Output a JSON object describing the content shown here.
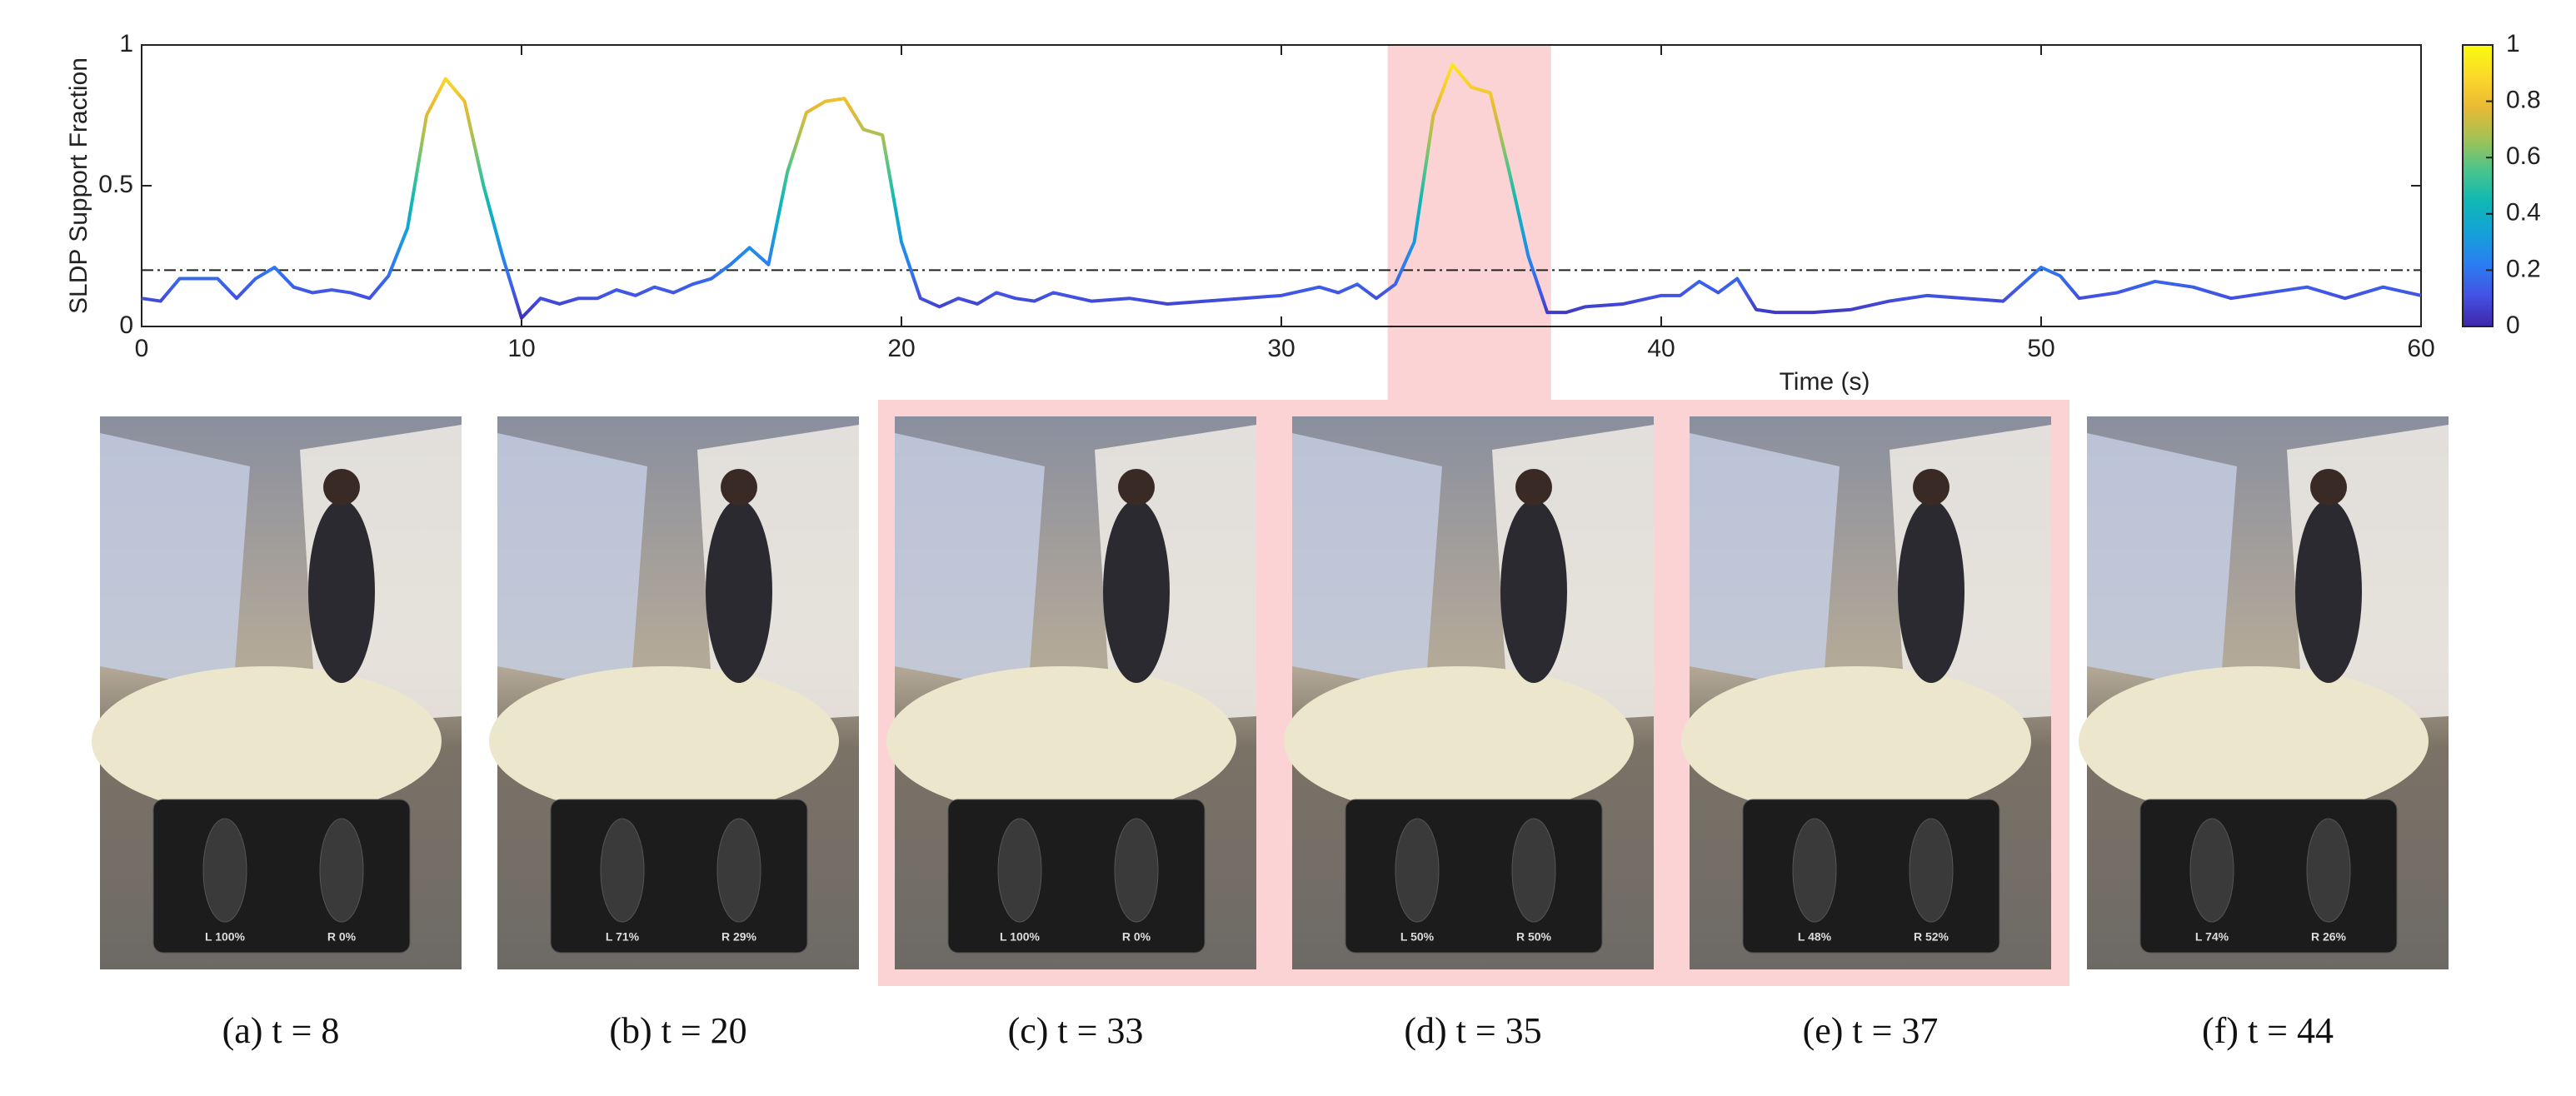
{
  "chart_data": {
    "type": "line",
    "xlabel": "Time (s)",
    "ylabel": "SLDP Support Fraction",
    "x": [
      0,
      0.5,
      1,
      1.5,
      2,
      2.5,
      3,
      3.5,
      4,
      4.5,
      5,
      5.5,
      6,
      6.5,
      7,
      7.5,
      8,
      8.5,
      9,
      9.5,
      10,
      10.5,
      11,
      11.5,
      12,
      12.5,
      13,
      13.5,
      14,
      14.5,
      15,
      15.5,
      16,
      16.5,
      17,
      17.5,
      18,
      18.5,
      19,
      19.5,
      20,
      20.5,
      21,
      21.5,
      22,
      22.5,
      23,
      23.5,
      24,
      25,
      26,
      27,
      28,
      29,
      30,
      31,
      31.5,
      32,
      32.5,
      33,
      33.5,
      34,
      34.5,
      35,
      35.5,
      36,
      36.5,
      37,
      37.5,
      38,
      39,
      40,
      40.5,
      41,
      41.5,
      42,
      42.5,
      43,
      44,
      45,
      46,
      47,
      48,
      49,
      49.5,
      50,
      50.5,
      51,
      52,
      53,
      54,
      55,
      56,
      57,
      58,
      59,
      60
    ],
    "values": [
      0.1,
      0.09,
      0.17,
      0.17,
      0.17,
      0.1,
      0.17,
      0.21,
      0.14,
      0.12,
      0.13,
      0.12,
      0.1,
      0.18,
      0.35,
      0.75,
      0.88,
      0.8,
      0.5,
      0.25,
      0.03,
      0.1,
      0.08,
      0.1,
      0.1,
      0.13,
      0.11,
      0.14,
      0.12,
      0.15,
      0.17,
      0.22,
      0.28,
      0.22,
      0.55,
      0.76,
      0.8,
      0.81,
      0.7,
      0.68,
      0.3,
      0.1,
      0.07,
      0.1,
      0.08,
      0.12,
      0.1,
      0.09,
      0.12,
      0.09,
      0.1,
      0.08,
      0.09,
      0.1,
      0.11,
      0.14,
      0.12,
      0.15,
      0.1,
      0.15,
      0.3,
      0.75,
      0.93,
      0.85,
      0.83,
      0.55,
      0.25,
      0.05,
      0.05,
      0.07,
      0.08,
      0.11,
      0.11,
      0.16,
      0.12,
      0.17,
      0.06,
      0.05,
      0.05,
      0.06,
      0.09,
      0.11,
      0.1,
      0.09,
      0.15,
      0.21,
      0.18,
      0.1,
      0.12,
      0.16,
      0.14,
      0.1,
      0.12,
      0.14,
      0.1,
      0.14,
      0.11
    ],
    "xlim": [
      0,
      60
    ],
    "xticks": [
      0,
      10,
      20,
      30,
      40,
      50,
      60
    ],
    "ylim": [
      0,
      1
    ],
    "yticks": [
      0,
      0.5,
      1
    ],
    "threshold": 0.2,
    "highlight": [
      32.8,
      37.1
    ],
    "highlight_color": "#fcd3d5",
    "colormap": [
      "#3e26a8",
      "#4353e4",
      "#2a7ef1",
      "#15a1d8",
      "#0fb8b4",
      "#4bc48b",
      "#a2c255",
      "#e9b934",
      "#fbd92a",
      "#f9fb0e"
    ],
    "clim": [
      0,
      1
    ],
    "cticks": [
      0,
      0.2,
      0.4,
      0.6,
      0.8,
      1
    ]
  },
  "panels": [
    {
      "caption": "(a) t = 8",
      "left": "L 100%",
      "right": "R 0%"
    },
    {
      "caption": "(b) t = 20",
      "left": "L 71%",
      "right": "R 29%"
    },
    {
      "caption": "(c) t = 33",
      "left": "L 100%",
      "right": "R 0%"
    },
    {
      "caption": "(d) t = 35",
      "left": "L 50%",
      "right": "R 50%"
    },
    {
      "caption": "(e) t = 37",
      "left": "L 48%",
      "right": "R 52%"
    },
    {
      "caption": "(f) t = 44",
      "left": "L 74%",
      "right": "R 26%"
    }
  ]
}
